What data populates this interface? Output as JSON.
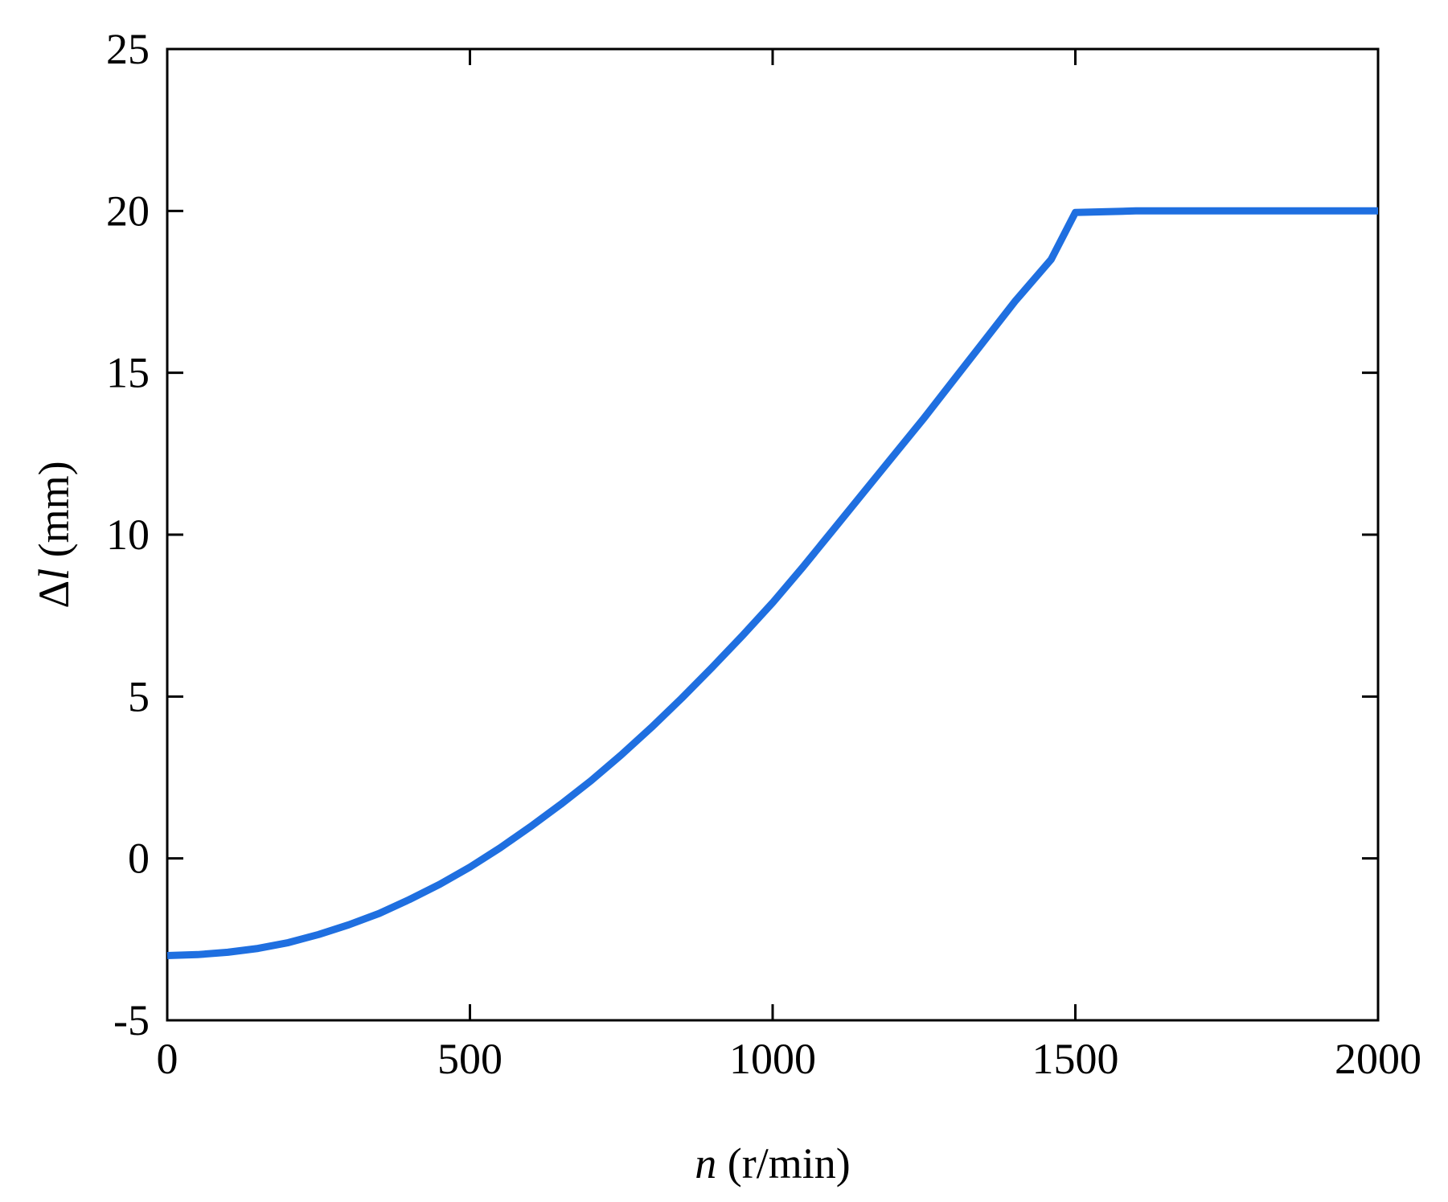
{
  "chart_data": {
    "type": "line",
    "title": "",
    "xlabel": {
      "var": "n",
      "unit": " (r/min)"
    },
    "ylabel": {
      "prefix": "Δ",
      "var": "l",
      "unit": " (mm)"
    },
    "xlim": [
      0,
      2000
    ],
    "ylim": [
      -5,
      25
    ],
    "xticks": [
      0,
      500,
      1000,
      1500,
      2000
    ],
    "xtick_labels": [
      "0",
      "500",
      "1000",
      "1500",
      "2000"
    ],
    "yticks": [
      -5,
      0,
      5,
      10,
      15,
      20,
      25
    ],
    "ytick_labels": [
      "-5",
      "0",
      "5",
      "10",
      "15",
      "20",
      "25"
    ],
    "grid": false,
    "legend": "none",
    "series": [
      {
        "color": "#1f6fe0",
        "x": [
          0,
          50,
          100,
          150,
          200,
          250,
          300,
          350,
          400,
          450,
          500,
          550,
          600,
          650,
          700,
          750,
          800,
          850,
          900,
          950,
          1000,
          1050,
          1100,
          1150,
          1200,
          1250,
          1300,
          1350,
          1400,
          1460,
          1500,
          1600,
          1700,
          1800,
          1900,
          2000
        ],
        "y": [
          -3.0,
          -2.97,
          -2.9,
          -2.78,
          -2.6,
          -2.35,
          -2.05,
          -1.7,
          -1.27,
          -0.8,
          -0.27,
          0.33,
          0.98,
          1.67,
          2.4,
          3.2,
          4.05,
          4.95,
          5.9,
          6.88,
          7.9,
          9.0,
          10.15,
          11.3,
          12.45,
          13.6,
          14.8,
          16.0,
          17.2,
          18.5,
          19.95,
          20.0,
          20.0,
          20.0,
          20.0,
          20.0
        ]
      }
    ]
  }
}
